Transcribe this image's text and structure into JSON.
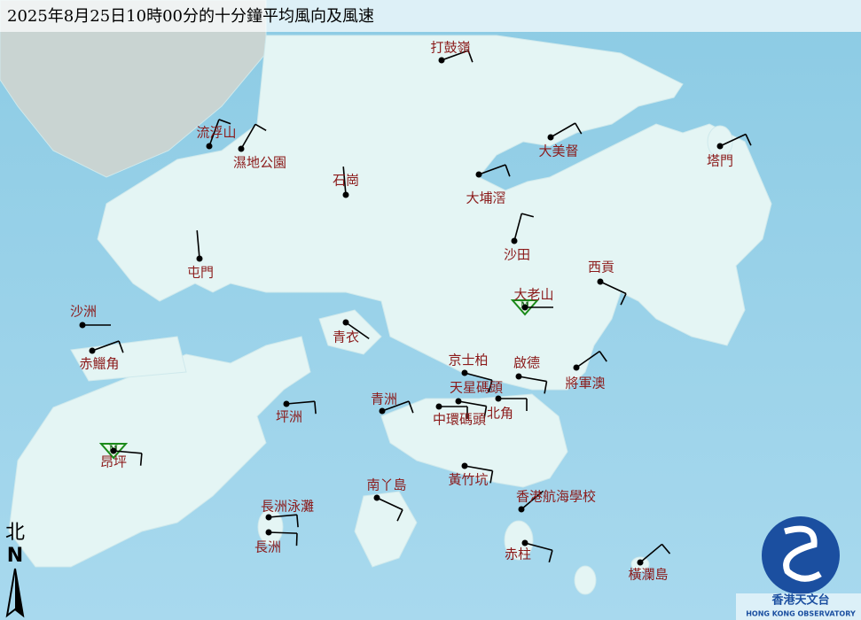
{
  "header": {
    "title": "2025年8月25日10時00分的十分鐘平均風向及風速"
  },
  "stations": [
    {
      "name": "打鼓嶺"
    },
    {
      "name": "流浮山"
    },
    {
      "name": "濕地公園"
    },
    {
      "name": "石崗"
    },
    {
      "name": "大美督"
    },
    {
      "name": "塔門"
    },
    {
      "name": "大埔滘"
    },
    {
      "name": "沙田"
    },
    {
      "name": "屯門"
    },
    {
      "name": "西貢"
    },
    {
      "name": "大老山"
    },
    {
      "name": "沙洲"
    },
    {
      "name": "赤鱲角"
    },
    {
      "name": "青衣"
    },
    {
      "name": "京士柏"
    },
    {
      "name": "啟德"
    },
    {
      "name": "將軍澳"
    },
    {
      "name": "天星碼頭"
    },
    {
      "name": "青洲"
    },
    {
      "name": "北角"
    },
    {
      "name": "中環碼頭"
    },
    {
      "name": "坪洲"
    },
    {
      "name": "昂坪"
    },
    {
      "name": "黃竹坑"
    },
    {
      "name": "南丫島"
    },
    {
      "name": "香港航海學校"
    },
    {
      "name": "長洲泳灘"
    },
    {
      "name": "長洲"
    },
    {
      "name": "赤柱"
    },
    {
      "name": "橫瀾島"
    }
  ],
  "station_symbol": "M",
  "north": {
    "char": "北",
    "letter": "N"
  },
  "logo": {
    "chinese": "香港天文台",
    "english": "HONG KONG OBSERVATORY"
  }
}
